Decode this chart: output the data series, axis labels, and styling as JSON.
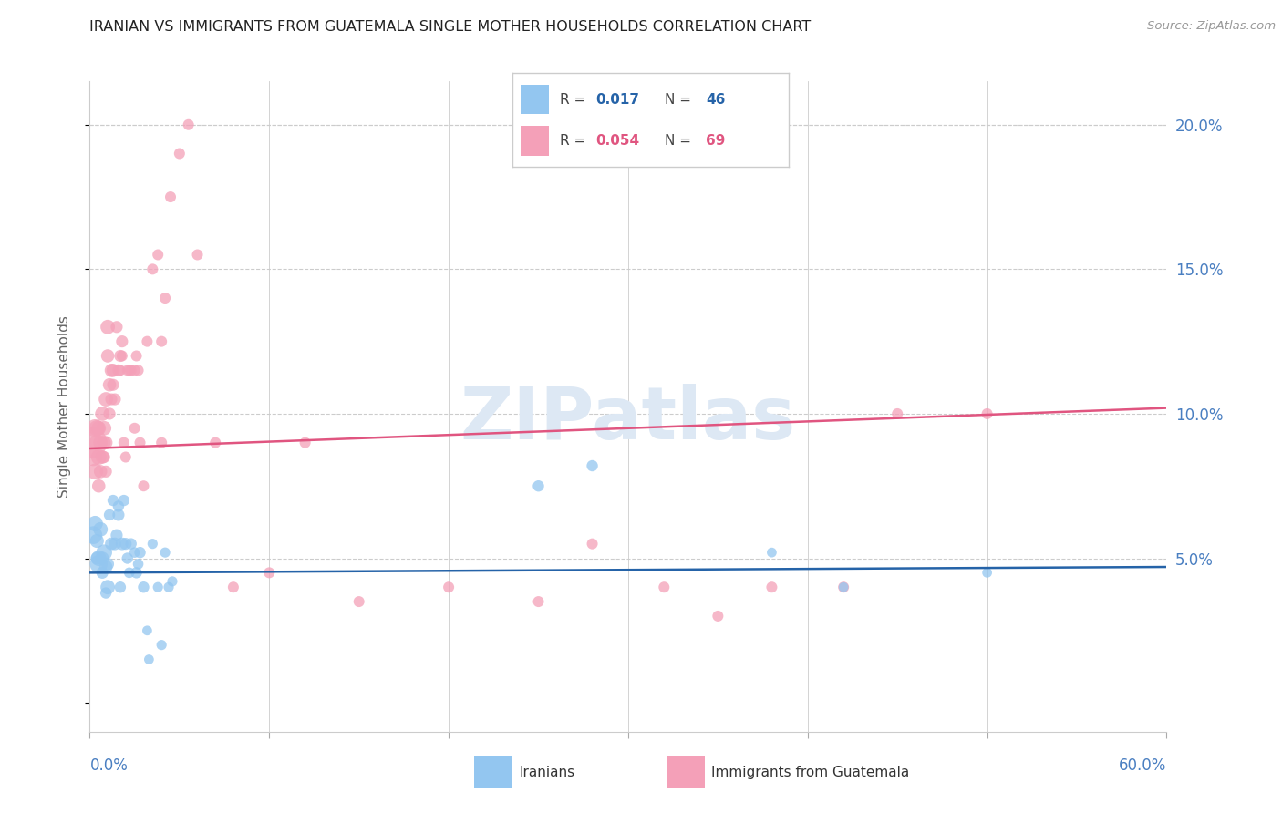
{
  "title": "IRANIAN VS IMMIGRANTS FROM GUATEMALA SINGLE MOTHER HOUSEHOLDS CORRELATION CHART",
  "source": "Source: ZipAtlas.com",
  "ylabel": "Single Mother Households",
  "xlim": [
    0.0,
    0.6
  ],
  "ylim": [
    -0.01,
    0.215
  ],
  "xticks": [
    0.0,
    0.1,
    0.2,
    0.3,
    0.4,
    0.5,
    0.6
  ],
  "yticks": [
    0.0,
    0.05,
    0.1,
    0.15,
    0.2
  ],
  "background_color": "#ffffff",
  "grid_color": "#cccccc",
  "iranians_color": "#93C6F0",
  "guatemala_color": "#F4A0B8",
  "iranians_line_color": "#2563a8",
  "guatemala_line_color": "#E05580",
  "iranians_R": 0.017,
  "iranians_N": 46,
  "guatemala_R": 0.054,
  "guatemala_N": 69,
  "watermark": "ZIPatlas",
  "iranians_line_x0": 0.0,
  "iranians_line_y0": 0.045,
  "iranians_line_x1": 0.6,
  "iranians_line_y1": 0.047,
  "guatemala_line_x0": 0.0,
  "guatemala_line_y0": 0.088,
  "guatemala_line_x1": 0.6,
  "guatemala_line_y1": 0.102,
  "iranians_x": [
    0.002,
    0.003,
    0.004,
    0.004,
    0.005,
    0.005,
    0.006,
    0.007,
    0.007,
    0.008,
    0.009,
    0.009,
    0.01,
    0.01,
    0.011,
    0.012,
    0.013,
    0.014,
    0.015,
    0.016,
    0.016,
    0.017,
    0.018,
    0.019,
    0.02,
    0.021,
    0.022,
    0.023,
    0.025,
    0.026,
    0.027,
    0.028,
    0.03,
    0.032,
    0.033,
    0.035,
    0.038,
    0.04,
    0.042,
    0.044,
    0.046,
    0.25,
    0.28,
    0.42,
    0.5,
    0.38
  ],
  "iranians_y": [
    0.058,
    0.062,
    0.056,
    0.05,
    0.05,
    0.048,
    0.06,
    0.05,
    0.045,
    0.052,
    0.047,
    0.038,
    0.048,
    0.04,
    0.065,
    0.055,
    0.07,
    0.055,
    0.058,
    0.068,
    0.065,
    0.04,
    0.055,
    0.07,
    0.055,
    0.05,
    0.045,
    0.055,
    0.052,
    0.045,
    0.048,
    0.052,
    0.04,
    0.025,
    0.015,
    0.055,
    0.04,
    0.02,
    0.052,
    0.04,
    0.042,
    0.075,
    0.082,
    0.04,
    0.045,
    0.052
  ],
  "iranians_size": [
    200,
    150,
    120,
    100,
    150,
    200,
    130,
    110,
    90,
    160,
    110,
    80,
    100,
    130,
    80,
    100,
    80,
    100,
    90,
    80,
    90,
    80,
    100,
    80,
    90,
    80,
    70,
    80,
    70,
    80,
    70,
    80,
    80,
    60,
    60,
    65,
    65,
    65,
    65,
    65,
    65,
    80,
    80,
    60,
    60,
    60
  ],
  "guatemala_x": [
    0.001,
    0.002,
    0.003,
    0.003,
    0.004,
    0.004,
    0.005,
    0.005,
    0.005,
    0.006,
    0.006,
    0.007,
    0.007,
    0.008,
    0.008,
    0.008,
    0.009,
    0.009,
    0.009,
    0.01,
    0.01,
    0.011,
    0.011,
    0.012,
    0.012,
    0.013,
    0.013,
    0.014,
    0.015,
    0.016,
    0.017,
    0.017,
    0.018,
    0.018,
    0.019,
    0.02,
    0.021,
    0.022,
    0.023,
    0.025,
    0.025,
    0.026,
    0.027,
    0.028,
    0.03,
    0.032,
    0.035,
    0.038,
    0.04,
    0.04,
    0.042,
    0.045,
    0.05,
    0.055,
    0.06,
    0.07,
    0.08,
    0.1,
    0.12,
    0.15,
    0.2,
    0.25,
    0.28,
    0.35,
    0.42,
    0.45,
    0.5,
    0.38,
    0.32
  ],
  "guatemala_y": [
    0.09,
    0.085,
    0.095,
    0.08,
    0.095,
    0.09,
    0.085,
    0.095,
    0.075,
    0.09,
    0.08,
    0.1,
    0.085,
    0.095,
    0.09,
    0.085,
    0.105,
    0.09,
    0.08,
    0.13,
    0.12,
    0.11,
    0.1,
    0.115,
    0.105,
    0.115,
    0.11,
    0.105,
    0.13,
    0.115,
    0.12,
    0.115,
    0.125,
    0.12,
    0.09,
    0.085,
    0.115,
    0.115,
    0.115,
    0.115,
    0.095,
    0.12,
    0.115,
    0.09,
    0.075,
    0.125,
    0.15,
    0.155,
    0.125,
    0.09,
    0.14,
    0.175,
    0.19,
    0.2,
    0.155,
    0.09,
    0.04,
    0.045,
    0.09,
    0.035,
    0.04,
    0.035,
    0.055,
    0.03,
    0.04,
    0.1,
    0.1,
    0.04,
    0.04
  ],
  "guatemala_size": [
    600,
    200,
    200,
    160,
    160,
    150,
    150,
    130,
    110,
    130,
    110,
    130,
    110,
    130,
    110,
    90,
    130,
    110,
    90,
    130,
    110,
    110,
    90,
    110,
    90,
    110,
    90,
    90,
    90,
    90,
    90,
    75,
    90,
    75,
    75,
    75,
    75,
    75,
    75,
    75,
    75,
    75,
    75,
    75,
    75,
    75,
    75,
    75,
    75,
    75,
    75,
    75,
    75,
    75,
    75,
    75,
    75,
    75,
    75,
    75,
    75,
    75,
    75,
    75,
    75,
    75,
    75,
    75,
    75
  ]
}
